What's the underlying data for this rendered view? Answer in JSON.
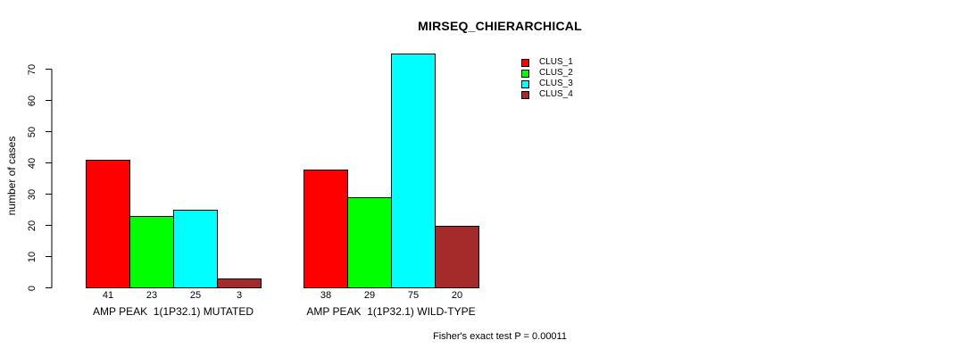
{
  "chart_data": {
    "type": "bar",
    "title": "MIRSEQ_CHIERARCHICAL",
    "ylabel": "number of cases",
    "ylim": [
      0,
      70
    ],
    "yticks": [
      0,
      10,
      20,
      30,
      40,
      50,
      60,
      70
    ],
    "grid": false,
    "legend_position": "top-right",
    "categories": [
      "AMP PEAK  1(1P32.1) MUTATED",
      "AMP PEAK  1(1P32.1) WILD-TYPE"
    ],
    "series": [
      {
        "name": "CLUS_1",
        "color": "#ff0000",
        "values": [
          41,
          38
        ]
      },
      {
        "name": "CLUS_2",
        "color": "#00ff00",
        "values": [
          23,
          29
        ]
      },
      {
        "name": "CLUS_3",
        "color": "#00ffff",
        "values": [
          25,
          75
        ]
      },
      {
        "name": "CLUS_4",
        "color": "#a52a2a",
        "values": [
          3,
          20
        ]
      }
    ],
    "bar_value_labels": [
      [
        41,
        23,
        25,
        3
      ],
      [
        38,
        29,
        75,
        20
      ]
    ],
    "annotation": "Fisher's exact test P = 0.00011",
    "axis_color": "#000000",
    "bar_border_color": "#000000"
  }
}
